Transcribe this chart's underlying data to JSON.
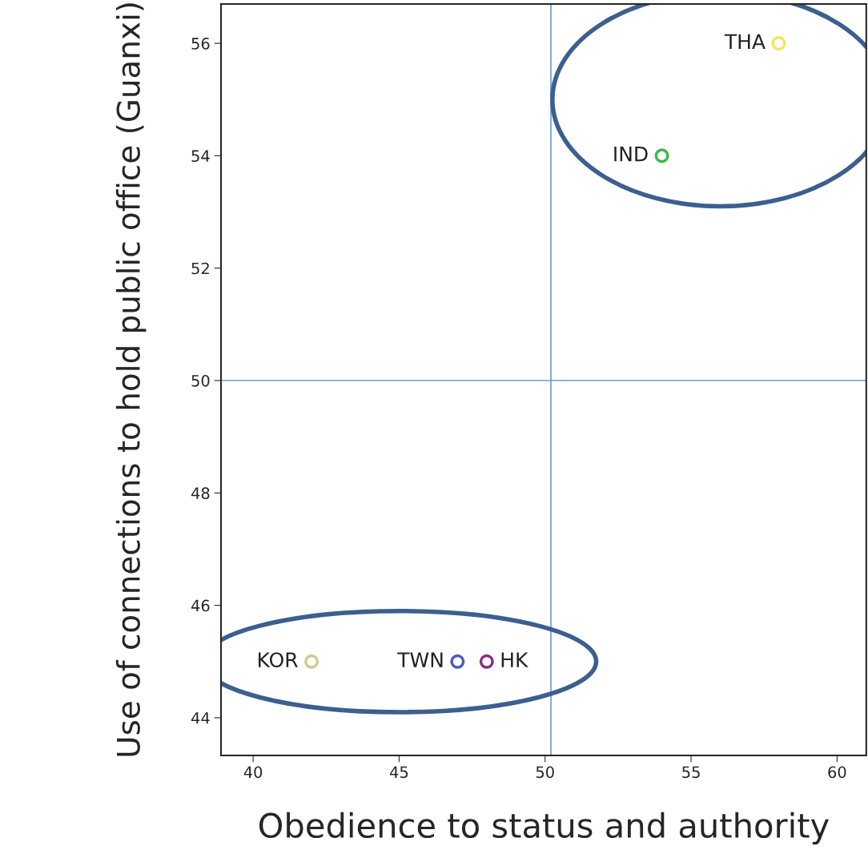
{
  "chart_data": {
    "type": "scatter",
    "xlabel": "Obedience to status and authority",
    "ylabel": "Use of connections to hold public office (Guanxi)",
    "series": [
      {
        "name": "THA",
        "color": "#f2e65a",
        "x": [
          58
        ],
        "values": [
          56
        ]
      },
      {
        "name": "IND",
        "color": "#3cb84a",
        "x": [
          54
        ],
        "values": [
          54
        ]
      },
      {
        "name": "KOR",
        "color": "#d2ca8c",
        "x": [
          42
        ],
        "values": [
          45
        ]
      },
      {
        "name": "TWN",
        "color": "#4a5cc0",
        "x": [
          47
        ],
        "values": [
          45
        ]
      },
      {
        "name": "HK",
        "color": "#8a2a8a",
        "x": [
          48
        ],
        "values": [
          45
        ]
      }
    ],
    "xlim": [
      38.9,
      61.0
    ],
    "ylim": [
      43.33,
      56.7
    ],
    "xticks": [
      40,
      45,
      50,
      55,
      60
    ],
    "yticks": [
      44,
      46,
      48,
      50,
      52,
      54,
      56
    ],
    "ref_lines": [
      {
        "axis": "x",
        "value": 50.2,
        "color": "#6f9ad6"
      },
      {
        "axis": "y",
        "value": 50,
        "color": "#6f9ad6"
      }
    ],
    "marker": "circle",
    "grid": false,
    "legend": false
  }
}
